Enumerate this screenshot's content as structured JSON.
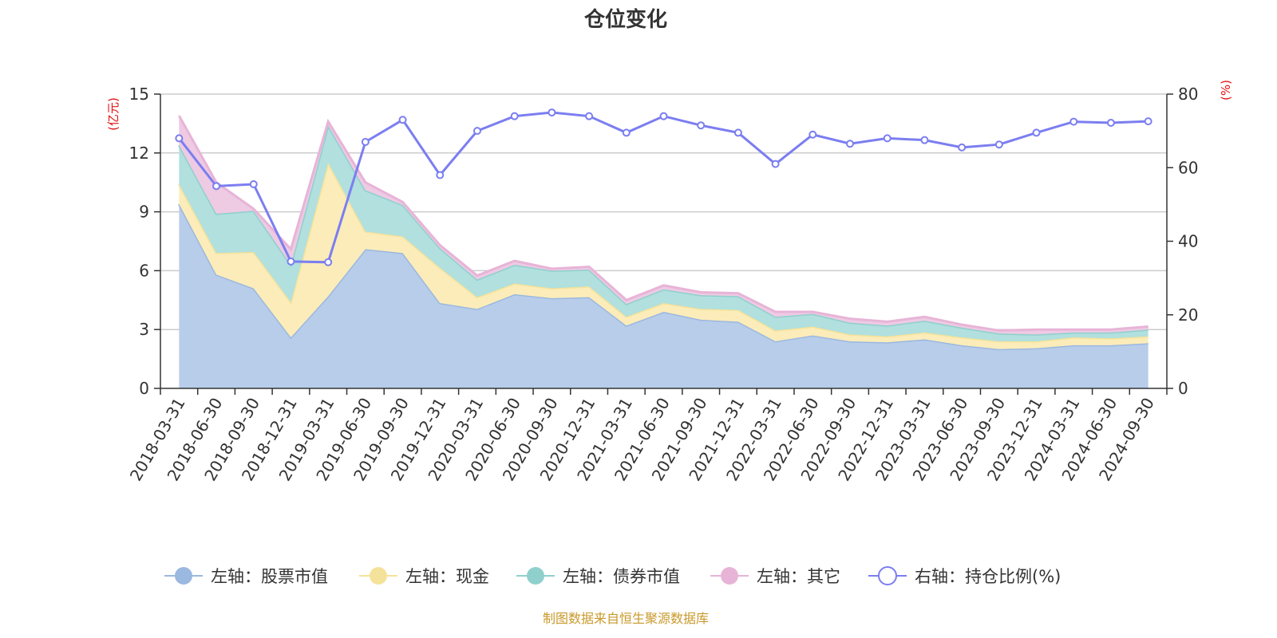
{
  "chart_data": {
    "type": "area",
    "title": "仓位变化",
    "left_unit": "(亿元)",
    "right_unit": "(%)",
    "source": "制图数据来自恒生聚源数据库",
    "x": [
      "2018-03-31",
      "2018-06-30",
      "2018-09-30",
      "2018-12-31",
      "2019-03-31",
      "2019-06-30",
      "2019-09-30",
      "2019-12-31",
      "2020-03-31",
      "2020-06-30",
      "2020-09-30",
      "2020-12-31",
      "2021-03-31",
      "2021-06-30",
      "2021-09-30",
      "2021-12-31",
      "2022-03-31",
      "2022-06-30",
      "2022-09-30",
      "2022-12-31",
      "2023-03-31",
      "2023-06-30",
      "2023-09-30",
      "2023-12-31",
      "2024-03-31",
      "2024-06-30",
      "2024-09-30"
    ],
    "left_axis": {
      "min": 0,
      "max": 15,
      "ticks": [
        "0",
        "3",
        "6",
        "9",
        "12",
        "15"
      ]
    },
    "right_axis": {
      "min": 0,
      "max": 80,
      "ticks": [
        "0",
        "20",
        "40",
        "60",
        "80"
      ]
    },
    "grid": true,
    "legend_position": "bottom",
    "series": [
      {
        "name": "左轴：股票市值",
        "axis": "left",
        "kind": "stacked-area",
        "color": "#9bb8e0",
        "fill": "#b8cdea",
        "values": [
          9.4,
          5.8,
          5.1,
          2.6,
          4.7,
          7.1,
          6.9,
          4.35,
          4.05,
          4.8,
          4.6,
          4.65,
          3.2,
          3.9,
          3.5,
          3.4,
          2.4,
          2.7,
          2.4,
          2.35,
          2.5,
          2.2,
          2.0,
          2.05,
          2.2,
          2.2,
          2.3
        ]
      },
      {
        "name": "左轴：现金",
        "axis": "left",
        "kind": "stacked-area",
        "color": "#f5e29a",
        "fill": "#fbecb9",
        "values": [
          1.0,
          1.1,
          1.85,
          1.8,
          6.8,
          0.9,
          0.85,
          1.8,
          0.6,
          0.55,
          0.5,
          0.55,
          0.45,
          0.45,
          0.55,
          0.6,
          0.55,
          0.45,
          0.35,
          0.3,
          0.35,
          0.4,
          0.4,
          0.35,
          0.4,
          0.35,
          0.35
        ]
      },
      {
        "name": "左轴：债券市值",
        "axis": "left",
        "kind": "stacked-area",
        "color": "#8fd0cd",
        "fill": "#b1e0de",
        "values": [
          2.0,
          2.0,
          2.1,
          1.9,
          1.9,
          2.1,
          1.6,
          1.0,
          0.9,
          0.95,
          0.9,
          0.85,
          0.65,
          0.7,
          0.7,
          0.7,
          0.7,
          0.65,
          0.6,
          0.55,
          0.6,
          0.5,
          0.4,
          0.35,
          0.25,
          0.3,
          0.35
        ]
      },
      {
        "name": "左轴：其它",
        "axis": "left",
        "kind": "stacked-area",
        "color": "#e7b4d7",
        "fill": "#eecae3",
        "values": [
          1.5,
          1.6,
          0.1,
          0.8,
          0.2,
          0.4,
          0.15,
          0.15,
          0.2,
          0.2,
          0.1,
          0.15,
          0.2,
          0.2,
          0.15,
          0.15,
          0.25,
          0.1,
          0.2,
          0.2,
          0.2,
          0.15,
          0.15,
          0.25,
          0.15,
          0.15,
          0.15
        ]
      },
      {
        "name": "右轴：持仓比例(%)",
        "axis": "right",
        "kind": "line",
        "color": "#7b7ef0",
        "values": [
          68,
          55,
          55.5,
          34.5,
          34.3,
          67,
          73,
          58,
          70,
          74,
          75,
          74,
          69.5,
          74,
          71.5,
          69.5,
          61,
          69,
          66.5,
          68,
          67.5,
          65.5,
          66.3,
          69.5,
          72.5,
          72.2,
          72.6
        ]
      }
    ]
  }
}
